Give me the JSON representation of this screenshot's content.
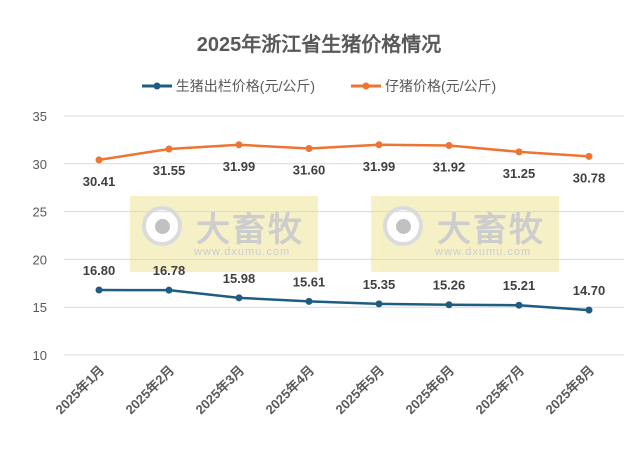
{
  "chart_data": {
    "type": "line",
    "title": "2025年浙江省生猪价格情况",
    "categories": [
      "2025年1月",
      "2025年2月",
      "2025年3月",
      "2025年4月",
      "2025年5月",
      "2025年6月",
      "2025年7月",
      "2025年8月"
    ],
    "series": [
      {
        "name": "生猪出栏价格(元/公斤)",
        "color": "#1f5c82",
        "values": [
          16.8,
          16.78,
          15.98,
          15.61,
          15.35,
          15.26,
          15.21,
          14.7
        ],
        "label_position": "above"
      },
      {
        "name": "仔猪价格(元/公斤)",
        "color": "#ed7431",
        "values": [
          30.41,
          31.55,
          31.99,
          31.6,
          31.99,
          31.92,
          31.25,
          30.78
        ],
        "label_position": "below"
      }
    ],
    "ylim": [
      10,
      35
    ],
    "yticks": [
      10,
      15,
      20,
      25,
      30,
      35
    ],
    "xlabel": "",
    "ylabel": "",
    "grid": true,
    "legend_position": "top-center"
  },
  "watermark": {
    "brand": "大畜牧",
    "url": "www.dxumu.com"
  }
}
